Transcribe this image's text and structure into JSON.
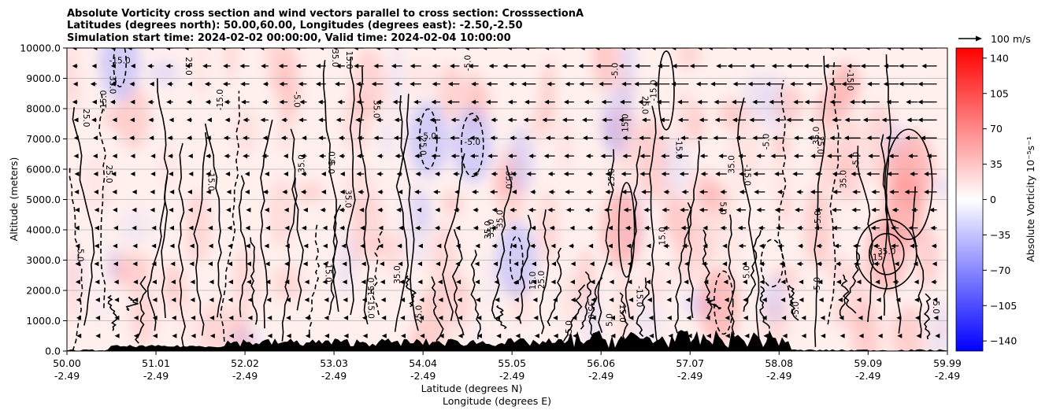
{
  "chart_data": {
    "type": "heatmap",
    "title_lines": [
      "Absolute Vorticity cross section and wind vectors parallel to cross section: CrosssectionA",
      "Latitudes (degrees north): 50.00,60.00, Longitudes (degrees east): -2.50,-2.50",
      "Simulation start time: 2024-02-02 00:00:00, Valid time: 2024-02-04 10:00:00"
    ],
    "ylabel": "Altitude (meters)",
    "xlabel_lines": [
      "Latitude (degrees N)",
      "Longitude (degrees E)"
    ],
    "ylim": [
      0,
      10000
    ],
    "xlim": [
      50.0,
      59.99
    ],
    "y_ticks": [
      "0.0",
      "1000.0",
      "2000.0",
      "3000.0",
      "4000.0",
      "5000.0",
      "6000.0",
      "7000.0",
      "8000.0",
      "9000.0",
      "10000.0"
    ],
    "x_ticks": [
      {
        "lat": "50.00",
        "lon": "-2.49"
      },
      {
        "lat": "51.01",
        "lon": "-2.49"
      },
      {
        "lat": "52.02",
        "lon": "-2.49"
      },
      {
        "lat": "53.03",
        "lon": "-2.49"
      },
      {
        "lat": "54.04",
        "lon": "-2.49"
      },
      {
        "lat": "55.05",
        "lon": "-2.49"
      },
      {
        "lat": "56.06",
        "lon": "-2.49"
      },
      {
        "lat": "57.07",
        "lon": "-2.49"
      },
      {
        "lat": "58.08",
        "lon": "-2.49"
      },
      {
        "lat": "59.09",
        "lon": "-2.49"
      },
      {
        "lat": "59.99",
        "lon": "-2.49"
      }
    ],
    "grid": "horizontal",
    "colorbar": {
      "label": "Absolute Vorticity 10⁻⁵s⁻¹",
      "range": [
        -150,
        150
      ],
      "ticks": [
        "140",
        "105",
        "70",
        "35",
        "0",
        "−35",
        "−70",
        "−105",
        "−140"
      ],
      "colormap": "bwr",
      "low_color": "#0000ff",
      "mid_color": "#ffffff",
      "high_color": "#ff0000"
    },
    "quiver_key": "100 m/s",
    "contour_labels": [
      "5.0",
      "15.0",
      "25.0",
      "35.0",
      "-5.0",
      "-15.0"
    ],
    "highlights": [
      {
        "lat": 59.3,
        "alt": 3200,
        "label": "35.0"
      },
      {
        "lat": 59.2,
        "alt": 3000,
        "label": "15"
      },
      {
        "lat": 54.1,
        "alt": 7000,
        "label": "-5.0"
      },
      {
        "lat": 54.6,
        "alt": 6800,
        "label": "-5.0"
      },
      {
        "lat": 50.6,
        "alt": 9500,
        "label": "-15.0"
      }
    ]
  }
}
